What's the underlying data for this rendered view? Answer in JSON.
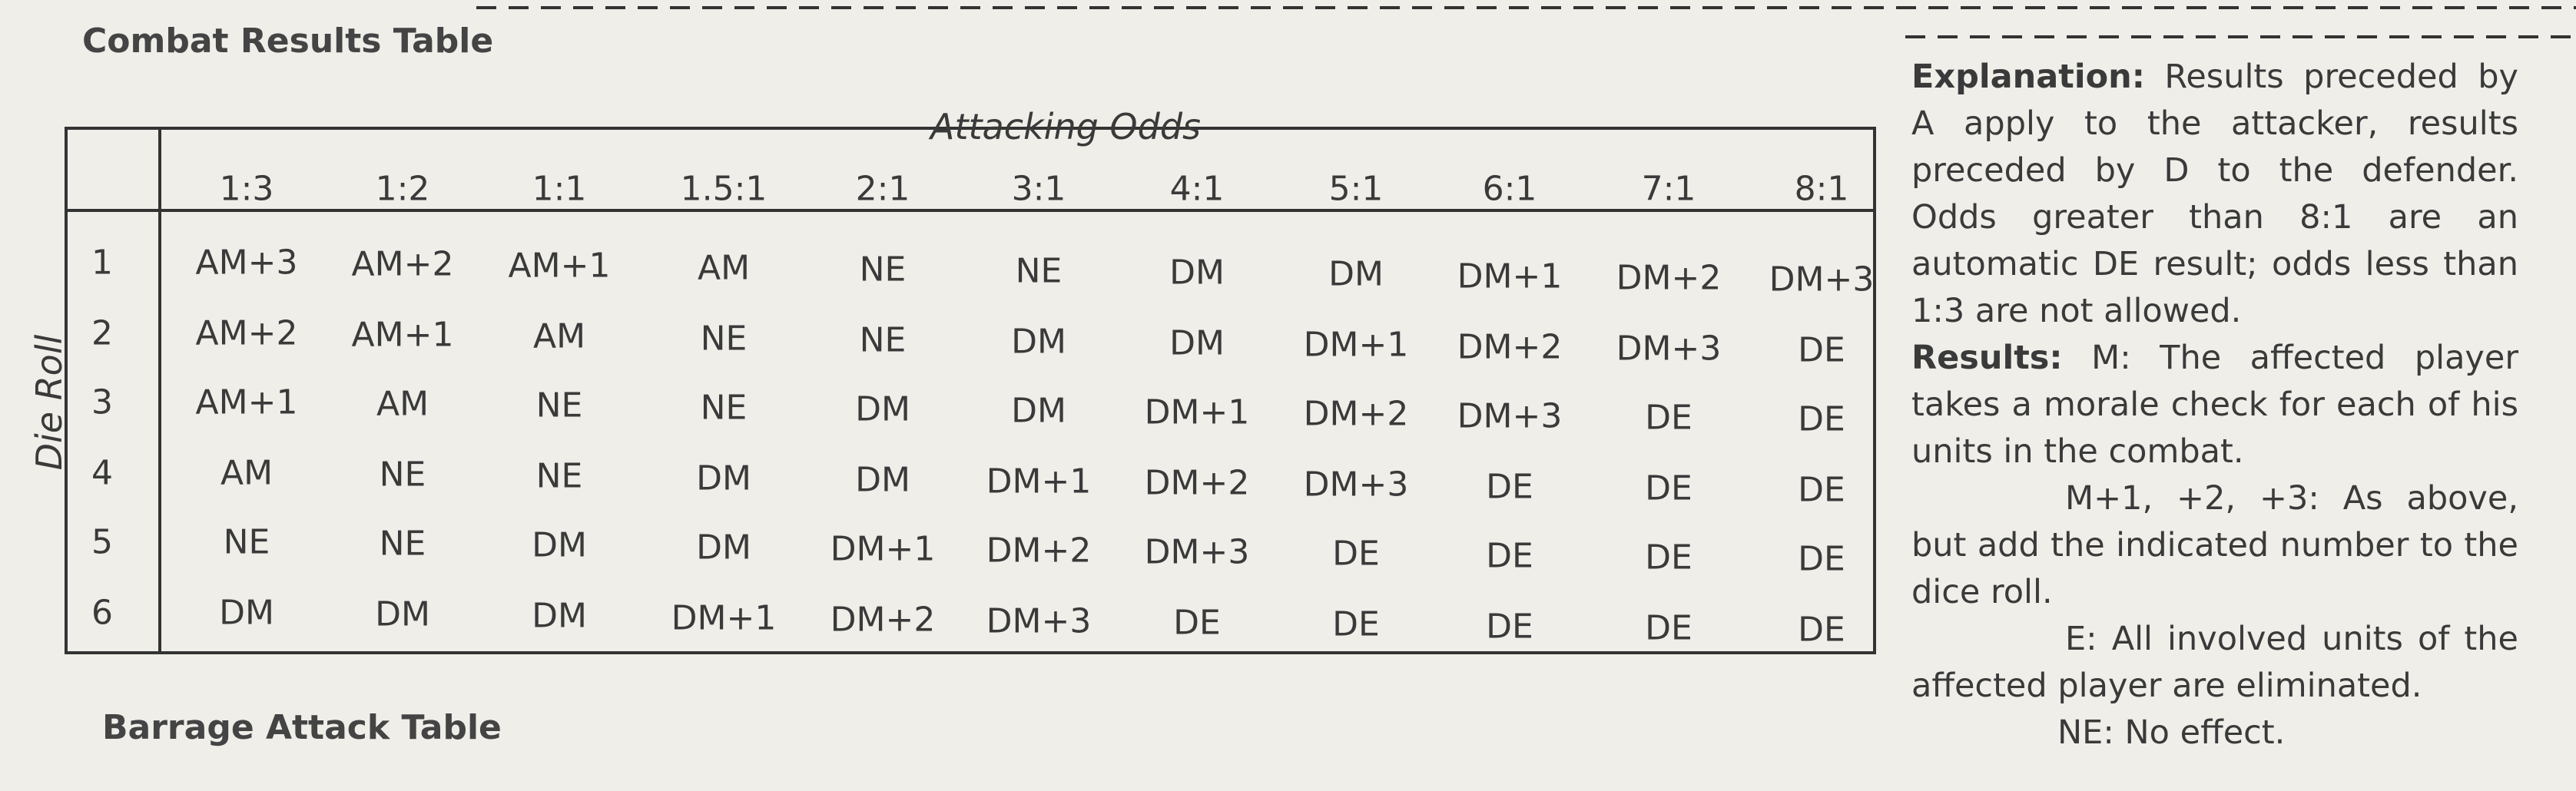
{
  "title": "Combat Results Table",
  "table": {
    "caption": "Attacking Odds",
    "row_label": "Die Roll",
    "columns": [
      "1:3",
      "1:2",
      "1:1",
      "1.5:1",
      "2:1",
      "3:1",
      "4:1",
      "5:1",
      "6:1",
      "7:1",
      "8:1"
    ],
    "rows": [
      {
        "die": "1",
        "results": [
          "AM+3",
          "AM+2",
          "AM+1",
          "AM",
          "NE",
          "NE",
          "DM",
          "DM",
          "DM+1",
          "DM+2",
          "DM+3"
        ]
      },
      {
        "die": "2",
        "results": [
          "AM+2",
          "AM+1",
          "AM",
          "NE",
          "NE",
          "DM",
          "DM",
          "DM+1",
          "DM+2",
          "DM+3",
          "DE"
        ]
      },
      {
        "die": "3",
        "results": [
          "AM+1",
          "AM",
          "NE",
          "NE",
          "DM",
          "DM",
          "DM+1",
          "DM+2",
          "DM+3",
          "DE",
          "DE"
        ]
      },
      {
        "die": "4",
        "results": [
          "AM",
          "NE",
          "NE",
          "DM",
          "DM",
          "DM+1",
          "DM+2",
          "DM+3",
          "DE",
          "DE",
          "DE"
        ]
      },
      {
        "die": "5",
        "results": [
          "NE",
          "NE",
          "DM",
          "DM",
          "DM+1",
          "DM+2",
          "DM+3",
          "DE",
          "DE",
          "DE",
          "DE"
        ]
      },
      {
        "die": "6",
        "results": [
          "DM",
          "DM",
          "DM",
          "DM+1",
          "DM+2",
          "DM+3",
          "DE",
          "DE",
          "DE",
          "DE",
          "DE"
        ]
      }
    ]
  },
  "explanation": {
    "label": "Explanation:",
    "text": "Results preceded by A apply to the attacker, results preceded by D to the defender. Odds greater than 8:1 are an automatic DE result; odds less than 1:3 are not allowed.",
    "results_label": "Results:",
    "results_text": "M: The affected player takes a morale check for each of his units in the combat.",
    "notes": [
      "M+1, +2, +3: As above, but add the indicated number to the dice roll.",
      "E: All involved units of the affected player are eliminated.",
      "NE: No effect."
    ]
  },
  "next_title": "Barrage Attack Table"
}
